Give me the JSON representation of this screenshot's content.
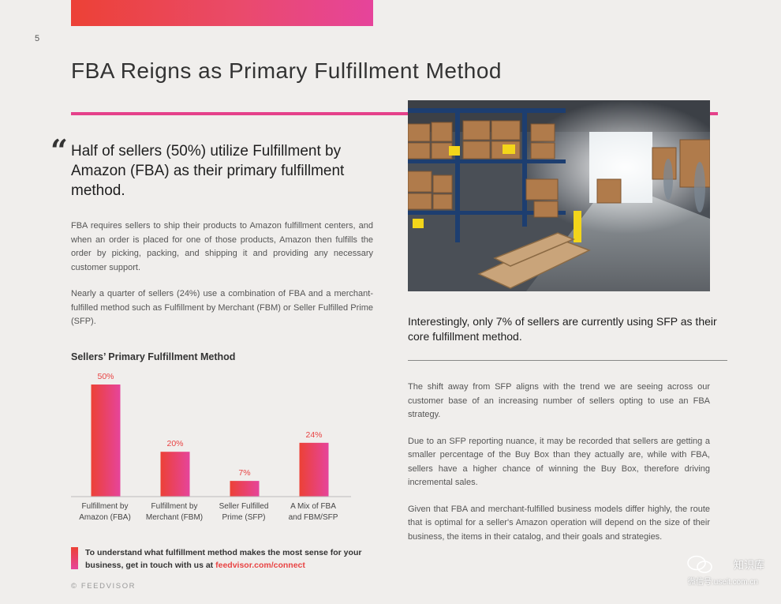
{
  "page": {
    "number": "5",
    "title": "FBA Reigns as Primary Fulfillment Method",
    "accent_colors": {
      "red": "#ec4136",
      "pink": "#e6449b",
      "rule": "#e5418a"
    }
  },
  "quote_mark": "“",
  "pull_quote": "Half of sellers (50%) utilize Fulfillment by Amazon (FBA) as their primary fulfillment method.",
  "left_body": [
    "FBA requires sellers to ship their products to Amazon fulfillment centers, and when an order is placed for one of those products, Amazon then fulfills the order by picking, packing, and shipping it and providing any necessary customer support.",
    "Nearly a quarter of sellers (24%) use a combination of FBA and a merchant-fulfilled method such as Fulfillment by Merchant (FBM) or Seller Fulfilled Prime (SFP)."
  ],
  "chart_title": "Sellers’ Primary Fulfillment Method",
  "chart_data": {
    "type": "bar",
    "title": "Sellers’ Primary Fulfillment Method",
    "categories": [
      [
        "Fulfillment by",
        "Amazon (FBA)"
      ],
      [
        "Fulfillment by",
        "Merchant (FBM)"
      ],
      [
        "Seller Fulfilled",
        "Prime (SFP)"
      ],
      [
        "A Mix of FBA",
        "and FBM/SFP"
      ]
    ],
    "values": [
      50,
      20,
      7,
      24
    ],
    "value_labels": [
      "50%",
      "20%",
      "7%",
      "24%"
    ],
    "unit": "%",
    "ylim": [
      0,
      50
    ],
    "grid": false,
    "bar_colors": [
      "#ec4136",
      "#e6449b"
    ]
  },
  "cta": {
    "text": "To understand what fulfillment method makes the most sense for your business, get in touch with us at ",
    "link": "feedvisor.com/connect"
  },
  "footer": "© FEEDVISOR",
  "photo": {
    "subject": "warehouse aisle with shelves of boxes and pallets"
  },
  "callout": "Interestingly, only 7% of sellers are currently using SFP as their core fulfillment method.",
  "right_body": [
    "The shift away from SFP aligns with the trend we are seeing across our customer base of an increasing number of sellers opting to use an FBA strategy.",
    "Due to an SFP reporting nuance, it may be recorded that sellers are getting a smaller percentage of the Buy Box than they actually are, while with FBA, sellers have a higher chance of winning the Buy Box, therefore driving incremental sales.",
    "Given that FBA and merchant-fulfilled business models differ highly, the route that is optimal for a seller's Amazon operation will depend on the size of their business, the items in their catalog, and their goals and strategies."
  ],
  "watermark": {
    "name": "知识库",
    "sub": "微信号:useit.com.cn",
    "icon": "wechat-icon"
  }
}
